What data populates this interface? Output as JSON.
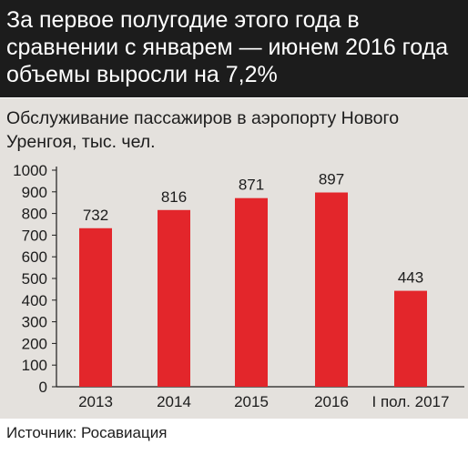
{
  "header": {
    "text": "За первое полугодие этого года в сравнении с январем — июнем 2016 года объемы выросли на 7,2%"
  },
  "source": "Источник: Росавиация",
  "colors": {
    "header_bg": "#1c1c1c",
    "panel_bg": "#e4e1dd",
    "bar": "#e3262b"
  },
  "chart_data": {
    "type": "bar",
    "title": "Обслуживание пассажиров в аэропорту Нового Уренгоя, тыс. чел.",
    "categories": [
      "2013",
      "2014",
      "2015",
      "2016",
      "I пол. 2017"
    ],
    "values": [
      732,
      816,
      871,
      897,
      443
    ],
    "data_labels": [
      "732",
      "816",
      "871",
      "897",
      "443"
    ],
    "yticks": [
      "0",
      "100",
      "200",
      "300",
      "400",
      "500",
      "600",
      "700",
      "800",
      "900",
      "1000"
    ],
    "ylim": [
      0,
      1000
    ],
    "grid": false,
    "legend": "none"
  }
}
